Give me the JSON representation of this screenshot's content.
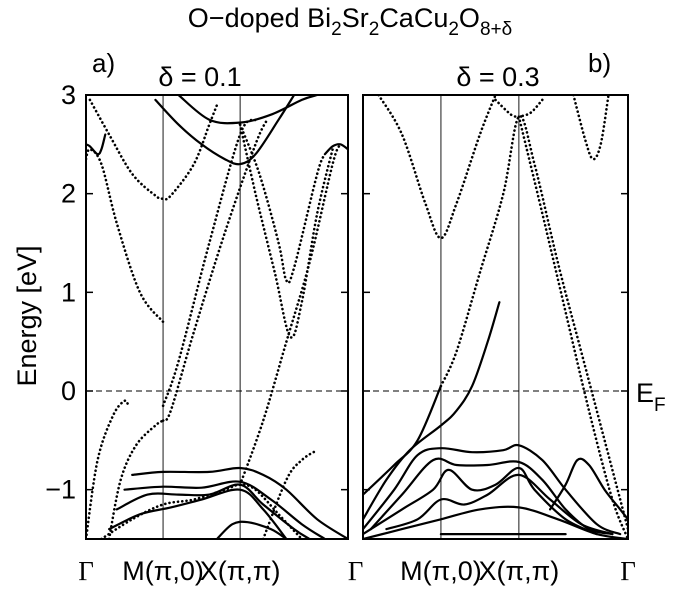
{
  "figure": {
    "title_prefix": "O−doped Bi",
    "title_parts": [
      {
        "t": "O−doped Bi",
        "sub": false
      },
      {
        "t": "2",
        "sub": true
      },
      {
        "t": "Sr",
        "sub": false
      },
      {
        "t": "2",
        "sub": true
      },
      {
        "t": "CaCu",
        "sub": false
      },
      {
        "t": "2",
        "sub": true
      },
      {
        "t": "O",
        "sub": false
      },
      {
        "t": "8+δ",
        "sub": true
      }
    ],
    "ylabel": "Energy [eV]",
    "fermi_label": "E",
    "fermi_sub": "F"
  },
  "chart_data": [
    {
      "type": "line",
      "panel_label": "a)",
      "subtitle": "δ = 0.1",
      "ylim": [
        -1.5,
        3
      ],
      "yticks": [
        -1,
        0,
        1,
        2,
        3
      ],
      "ytick_labels": [
        "−1",
        "0",
        "1",
        "2",
        "3"
      ],
      "xtick_labels": [
        "Γ",
        "M(π,0)",
        "X(π,π)",
        "Γ"
      ],
      "reference_line_y": 0,
      "bands": [
        {
          "style": "dotted",
          "points": [
            [
              0.0,
              -1.5
            ],
            [
              0.15,
              -0.7
            ],
            [
              0.35,
              -0.25
            ],
            [
              0.5,
              -0.1
            ],
            [
              0.55,
              -0.15
            ]
          ]
        },
        {
          "style": "dotted",
          "points": [
            [
              0.3,
              -1.5
            ],
            [
              0.45,
              -0.9
            ],
            [
              0.65,
              -0.55
            ],
            [
              0.9,
              -0.35
            ],
            [
              1.0,
              -0.3
            ]
          ]
        },
        {
          "style": "dotted",
          "points": [
            [
              1.0,
              -0.3
            ],
            [
              1.1,
              -0.2
            ],
            [
              1.4,
              0.6
            ],
            [
              1.8,
              1.6
            ],
            [
              2.2,
              2.5
            ],
            [
              2.35,
              2.75
            ]
          ]
        },
        {
          "style": "dotted",
          "points": [
            [
              1.0,
              -0.15
            ],
            [
              1.2,
              0.3
            ],
            [
              1.6,
              1.5
            ],
            [
              2.0,
              2.6
            ],
            [
              2.2,
              2.75
            ]
          ]
        },
        {
          "style": "dotted",
          "points": [
            [
              0.05,
              2.95
            ],
            [
              0.3,
              2.6
            ],
            [
              0.6,
              2.2
            ],
            [
              0.9,
              1.98
            ],
            [
              1.0,
              1.95
            ],
            [
              1.1,
              1.98
            ],
            [
              1.4,
              2.3
            ],
            [
              1.6,
              2.7
            ],
            [
              1.7,
              2.9
            ]
          ]
        },
        {
          "style": "dotted",
          "points": [
            [
              0.0,
              2.35
            ],
            [
              0.05,
              2.45
            ],
            [
              0.2,
              2.3
            ],
            [
              0.4,
              1.7
            ],
            [
              0.7,
              1.0
            ],
            [
              1.0,
              0.7
            ]
          ]
        },
        {
          "style": "dotted",
          "points": [
            [
              2.0,
              2.7
            ],
            [
              2.25,
              2.2
            ],
            [
              2.5,
              1.5
            ],
            [
              2.6,
              1.12
            ],
            [
              2.7,
              1.25
            ],
            [
              3.0,
              2.2
            ],
            [
              3.1,
              2.4
            ]
          ]
        },
        {
          "style": "dotted",
          "points": [
            [
              2.0,
              2.7
            ],
            [
              2.2,
              2.0
            ],
            [
              2.45,
              1.2
            ],
            [
              2.65,
              0.55
            ],
            [
              2.8,
              0.9
            ],
            [
              3.0,
              1.8
            ],
            [
              3.2,
              2.45
            ]
          ]
        },
        {
          "style": "dotted",
          "points": [
            [
              2.0,
              -0.95
            ],
            [
              2.3,
              -0.3
            ],
            [
              2.6,
              0.5
            ],
            [
              2.9,
              1.3
            ],
            [
              3.2,
              2.3
            ],
            [
              3.3,
              2.5
            ]
          ]
        },
        {
          "style": "dotted",
          "points": [
            [
              2.3,
              -1.5
            ],
            [
              2.6,
              -0.9
            ],
            [
              2.8,
              -0.7
            ],
            [
              3.0,
              -0.6
            ]
          ]
        },
        {
          "style": "solid",
          "points": [
            [
              0.9,
              2.95
            ],
            [
              1.2,
              2.7
            ],
            [
              1.5,
              2.5
            ],
            [
              1.8,
              2.35
            ],
            [
              2.0,
              2.3
            ],
            [
              2.2,
              2.4
            ],
            [
              2.5,
              2.75
            ],
            [
              2.7,
              3.0
            ]
          ]
        },
        {
          "style": "solid",
          "points": [
            [
              1.2,
              3.0
            ],
            [
              1.6,
              2.75
            ],
            [
              2.0,
              2.72
            ],
            [
              2.4,
              2.8
            ],
            [
              2.8,
              2.95
            ],
            [
              3.0,
              3.0
            ]
          ]
        },
        {
          "style": "solid",
          "points": [
            [
              0.0,
              2.5
            ],
            [
              0.05,
              2.48
            ],
            [
              0.15,
              2.4
            ],
            [
              0.2,
              2.45
            ],
            [
              0.25,
              2.6
            ]
          ]
        },
        {
          "style": "solid",
          "points": [
            [
              3.1,
              2.4
            ],
            [
              3.2,
              2.48
            ],
            [
              3.3,
              2.5
            ],
            [
              3.4,
              2.45
            ]
          ]
        },
        {
          "style": "solid",
          "points": [
            [
              0.6,
              -0.85
            ],
            [
              1.0,
              -0.82
            ],
            [
              1.6,
              -0.82
            ],
            [
              2.0,
              -0.78
            ],
            [
              2.3,
              -0.85
            ],
            [
              2.6,
              -1.0
            ],
            [
              3.0,
              -1.3
            ],
            [
              3.4,
              -1.5
            ]
          ]
        },
        {
          "style": "solid",
          "points": [
            [
              0.5,
              -1.0
            ],
            [
              1.0,
              -0.97
            ],
            [
              1.5,
              -0.98
            ],
            [
              2.0,
              -0.92
            ],
            [
              2.4,
              -1.1
            ],
            [
              2.8,
              -1.35
            ],
            [
              3.1,
              -1.5
            ]
          ]
        },
        {
          "style": "solid",
          "points": [
            [
              0.4,
              -1.2
            ],
            [
              0.8,
              -1.05
            ],
            [
              1.2,
              -1.05
            ],
            [
              1.6,
              -1.05
            ],
            [
              2.0,
              -0.95
            ],
            [
              2.3,
              -1.15
            ],
            [
              2.7,
              -1.4
            ],
            [
              2.9,
              -1.5
            ]
          ]
        },
        {
          "style": "solid",
          "points": [
            [
              0.3,
              -1.4
            ],
            [
              0.7,
              -1.25
            ],
            [
              1.1,
              -1.18
            ],
            [
              1.5,
              -1.1
            ],
            [
              2.0,
              -1.0
            ],
            [
              2.3,
              -1.2
            ],
            [
              2.6,
              -1.5
            ]
          ]
        },
        {
          "style": "dotted",
          "points": [
            [
              0.2,
              -1.5
            ],
            [
              0.6,
              -1.3
            ],
            [
              1.0,
              -1.15
            ],
            [
              1.4,
              -1.1
            ],
            [
              1.8,
              -1.0
            ],
            [
              2.0,
              -0.95
            ],
            [
              2.2,
              -1.0
            ],
            [
              2.5,
              -1.25
            ],
            [
              2.8,
              -1.5
            ]
          ]
        },
        {
          "style": "solid",
          "points": [
            [
              1.7,
              -1.5
            ],
            [
              1.9,
              -1.35
            ],
            [
              2.1,
              -1.33
            ],
            [
              2.4,
              -1.4
            ],
            [
              2.6,
              -1.5
            ]
          ]
        }
      ]
    },
    {
      "type": "line",
      "panel_label": "b)",
      "subtitle": "δ = 0.3",
      "ylim": [
        -1.5,
        3
      ],
      "yticks": [
        -1,
        0,
        1,
        2,
        3
      ],
      "xtick_labels": [
        "Γ",
        "M(π,0)",
        "X(π,π)",
        "Γ"
      ],
      "reference_line_y": 0,
      "bands": [
        {
          "style": "dotted",
          "points": [
            [
              0.2,
              3.0
            ],
            [
              0.5,
              2.6
            ],
            [
              0.8,
              1.9
            ],
            [
              1.0,
              1.55
            ],
            [
              1.2,
              1.9
            ],
            [
              1.5,
              2.6
            ],
            [
              1.7,
              3.0
            ]
          ]
        },
        {
          "style": "dotted",
          "points": [
            [
              1.0,
              0.05
            ],
            [
              1.2,
              0.4
            ],
            [
              1.5,
              1.2
            ],
            [
              1.8,
              2.0
            ],
            [
              2.0,
              2.78
            ],
            [
              2.2,
              2.3
            ],
            [
              2.5,
              1.3
            ],
            [
              2.8,
              0.4
            ],
            [
              3.1,
              -0.5
            ],
            [
              3.4,
              -1.4
            ]
          ]
        },
        {
          "style": "dotted",
          "points": [
            [
              2.0,
              2.78
            ],
            [
              2.3,
              1.8
            ],
            [
              2.6,
              0.8
            ],
            [
              2.9,
              -0.2
            ],
            [
              3.2,
              -1.1
            ],
            [
              3.4,
              -1.5
            ]
          ]
        },
        {
          "style": "dotted",
          "points": [
            [
              2.7,
              3.0
            ],
            [
              2.85,
              2.55
            ],
            [
              2.95,
              2.35
            ],
            [
              3.05,
              2.5
            ],
            [
              3.15,
              3.0
            ]
          ]
        },
        {
          "style": "dotted",
          "points": [
            [
              1.7,
              2.95
            ],
            [
              1.9,
              2.8
            ],
            [
              2.0,
              2.78
            ]
          ]
        },
        {
          "style": "dotted",
          "points": [
            [
              2.3,
              2.95
            ],
            [
              2.15,
              2.82
            ],
            [
              2.0,
              2.78
            ]
          ]
        },
        {
          "style": "solid",
          "points": [
            [
              0.0,
              -1.05
            ],
            [
              0.4,
              -0.75
            ],
            [
              0.7,
              -0.5
            ],
            [
              1.0,
              0.05
            ]
          ]
        },
        {
          "style": "solid",
          "points": [
            [
              0.0,
              -1.3
            ],
            [
              0.3,
              -0.9
            ],
            [
              0.6,
              -0.6
            ],
            [
              1.0,
              -0.35
            ],
            [
              1.2,
              -0.2
            ],
            [
              1.4,
              0.05
            ],
            [
              1.6,
              0.5
            ],
            [
              1.75,
              0.9
            ]
          ]
        },
        {
          "style": "solid",
          "points": [
            [
              0.0,
              -1.4
            ],
            [
              0.4,
              -1.0
            ],
            [
              0.7,
              -0.65
            ],
            [
              1.0,
              -0.58
            ],
            [
              1.4,
              -0.62
            ],
            [
              1.8,
              -0.6
            ],
            [
              2.0,
              -0.55
            ],
            [
              2.3,
              -0.7
            ],
            [
              2.6,
              -1.0
            ],
            [
              3.0,
              -1.35
            ],
            [
              3.3,
              -1.45
            ]
          ]
        },
        {
          "style": "solid",
          "points": [
            [
              0.1,
              -1.4
            ],
            [
              0.5,
              -1.05
            ],
            [
              0.9,
              -0.7
            ],
            [
              1.2,
              -0.75
            ],
            [
              1.6,
              -0.75
            ],
            [
              2.0,
              -0.72
            ],
            [
              2.3,
              -0.9
            ],
            [
              2.6,
              -1.2
            ],
            [
              2.9,
              -1.4
            ],
            [
              3.2,
              -1.45
            ]
          ]
        },
        {
          "style": "solid",
          "points": [
            [
              0.0,
              -1.45
            ],
            [
              0.5,
              -1.2
            ],
            [
              0.9,
              -1.0
            ],
            [
              1.1,
              -0.8
            ],
            [
              1.4,
              -1.0
            ],
            [
              1.7,
              -0.95
            ],
            [
              2.0,
              -0.78
            ],
            [
              2.2,
              -1.0
            ],
            [
              2.6,
              -1.3
            ],
            [
              3.0,
              -1.45
            ]
          ]
        },
        {
          "style": "solid",
          "points": [
            [
              0.3,
              -1.4
            ],
            [
              0.7,
              -1.3
            ],
            [
              1.0,
              -1.1
            ],
            [
              1.3,
              -1.15
            ],
            [
              1.6,
              -1.05
            ],
            [
              2.0,
              -0.85
            ],
            [
              2.4,
              -1.1
            ],
            [
              2.8,
              -1.35
            ],
            [
              3.2,
              -1.45
            ]
          ]
        },
        {
          "style": "solid",
          "points": [
            [
              0.0,
              -1.5
            ],
            [
              0.5,
              -1.4
            ],
            [
              1.0,
              -1.3
            ],
            [
              1.5,
              -1.2
            ],
            [
              2.0,
              -1.18
            ],
            [
              2.5,
              -1.3
            ],
            [
              3.0,
              -1.45
            ],
            [
              3.4,
              -1.5
            ]
          ]
        },
        {
          "style": "solid",
          "points": [
            [
              2.4,
              -1.2
            ],
            [
              2.6,
              -0.95
            ],
            [
              2.75,
              -0.7
            ],
            [
              2.9,
              -0.75
            ],
            [
              3.1,
              -1.0
            ],
            [
              3.3,
              -1.2
            ],
            [
              3.4,
              -1.3
            ]
          ]
        },
        {
          "style": "solid",
          "points": [
            [
              1.0,
              -1.45
            ],
            [
              1.4,
              -1.45
            ],
            [
              1.8,
              -1.45
            ],
            [
              2.2,
              -1.45
            ],
            [
              2.6,
              -1.45
            ]
          ]
        }
      ]
    }
  ]
}
